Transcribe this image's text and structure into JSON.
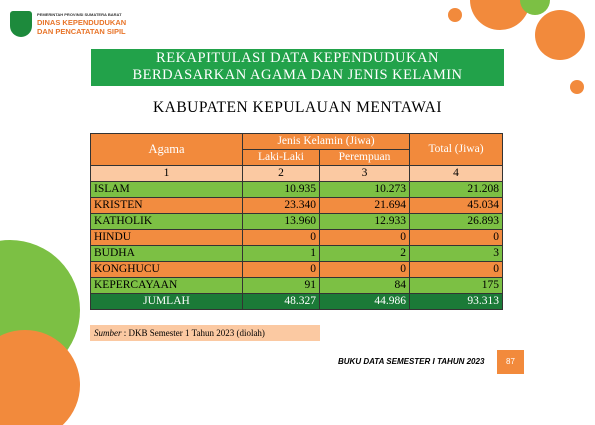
{
  "header": {
    "org": "PEMERINTAH PROVINSI SUMATERA BARAT",
    "dept_line1": "DINAS KEPENDUDUKAN",
    "dept_line2": "DAN PENCATATAN SIPIL"
  },
  "title": {
    "line1": "REKAPITULASI DATA KEPENDUDUKAN",
    "line2": "BERDASARKAN AGAMA DAN JENIS KELAMIN"
  },
  "subtitle": "KABUPATEN KEPULAUAN MENTAWAI",
  "table": {
    "headers": {
      "agama": "Agama",
      "gender": "Jenis Kelamin (Jiwa)",
      "male": "Laki-Laki",
      "female": "Perempuan",
      "total": "Total (Jiwa)"
    },
    "index": [
      "1",
      "2",
      "3",
      "4"
    ],
    "rows": [
      [
        "ISLAM",
        "10.935",
        "10.273",
        "21.208"
      ],
      [
        "KRISTEN",
        "23.340",
        "21.694",
        "45.034"
      ],
      [
        "KATHOLIK",
        "13.960",
        "12.933",
        "26.893"
      ],
      [
        "HINDU",
        "0",
        "0",
        "0"
      ],
      [
        "BUDHA",
        "1",
        "2",
        "3"
      ],
      [
        "KONGHUCU",
        "0",
        "0",
        "0"
      ],
      [
        "KEPERCAYAAN",
        "91",
        "84",
        "175"
      ]
    ],
    "total_row": [
      "JUMLAH",
      "48.327",
      "44.986",
      "93.313"
    ]
  },
  "source": {
    "label": "Sumber",
    "text": ": DKB Semester 1 Tahun 2023 (diolah)"
  },
  "footer": {
    "book": "BUKU DATA SEMESTER I TAHUN 2023",
    "page": "87"
  }
}
